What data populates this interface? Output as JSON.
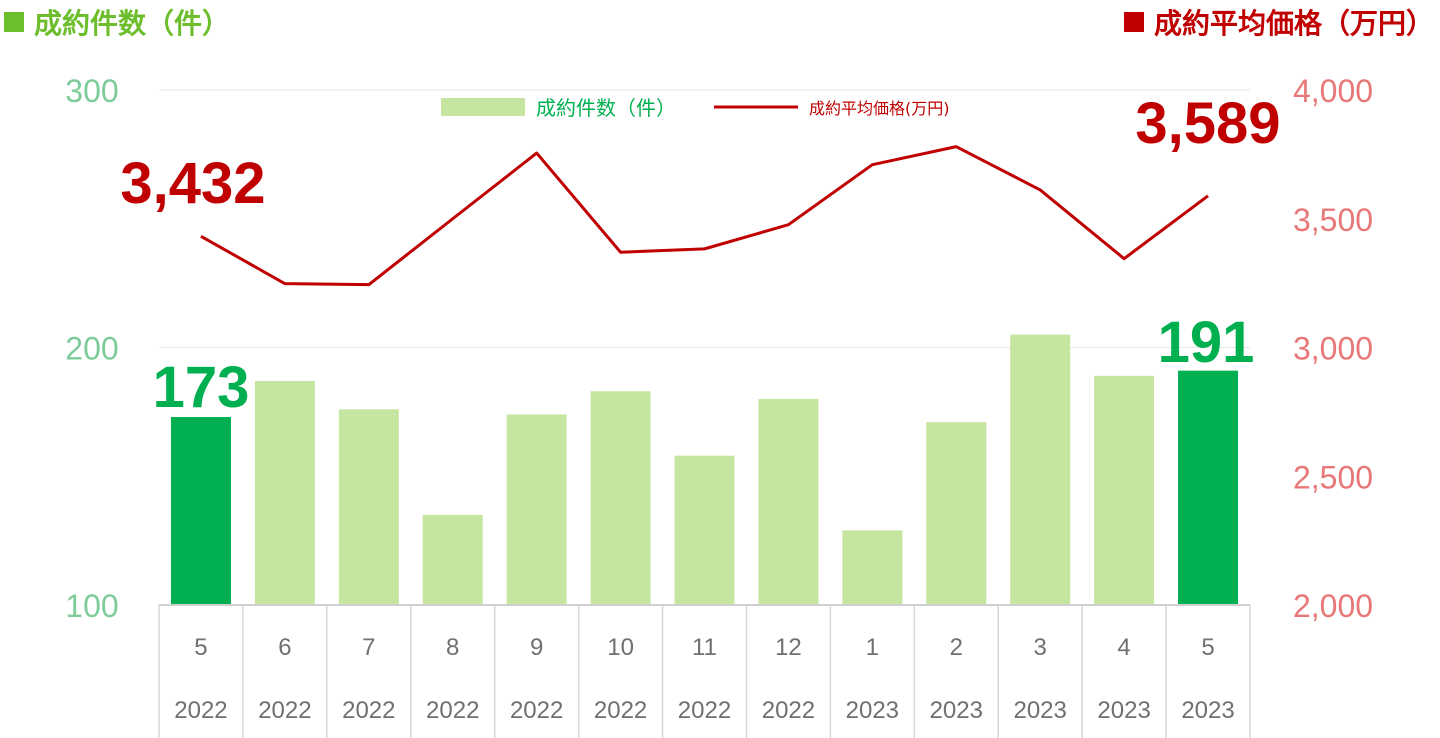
{
  "left_title": "成約件数（件）",
  "right_title": "成約平均価格（万円）",
  "colors": {
    "bar": "#C5E5A0",
    "bar_highlight": "#00B050",
    "line": "#C00000",
    "left_axis_text": "#7DCC9A",
    "right_axis_text": "#E87878",
    "count_callout": "#00B050",
    "price_callout": "#C00000",
    "left_title": "#6DBE2C",
    "right_title": "#C00000"
  },
  "legend": {
    "count": "成約件数（件）",
    "price": "成約平均価格(万円)"
  },
  "callouts": {
    "first_price": "3,432",
    "last_price": "3,589",
    "first_count": "173",
    "last_count": "191"
  },
  "chart_data": {
    "type": "bar",
    "categories": [
      {
        "month": "5",
        "year": "2022"
      },
      {
        "month": "6",
        "year": "2022"
      },
      {
        "month": "7",
        "year": "2022"
      },
      {
        "month": "8",
        "year": "2022"
      },
      {
        "month": "9",
        "year": "2022"
      },
      {
        "month": "10",
        "year": "2022"
      },
      {
        "month": "11",
        "year": "2022"
      },
      {
        "month": "12",
        "year": "2022"
      },
      {
        "month": "1",
        "year": "2023"
      },
      {
        "month": "2",
        "year": "2023"
      },
      {
        "month": "3",
        "year": "2023"
      },
      {
        "month": "4",
        "year": "2023"
      },
      {
        "month": "5",
        "year": "2023"
      }
    ],
    "series": [
      {
        "name": "成約件数（件）",
        "type": "bar",
        "axis": "left",
        "values": [
          173,
          187,
          176,
          135,
          174,
          183,
          158,
          180,
          129,
          171,
          205,
          189,
          191
        ],
        "highlight": [
          0,
          12
        ]
      },
      {
        "name": "成約平均価格(万円)",
        "type": "line",
        "axis": "right",
        "values": [
          3432,
          3248,
          3244,
          3500,
          3755,
          3370,
          3383,
          3477,
          3710,
          3780,
          3612,
          3345,
          3589
        ]
      }
    ],
    "y_left": {
      "min": 100,
      "max": 300,
      "ticks": [
        "100",
        "200",
        "300"
      ]
    },
    "y_right": {
      "min": 2000,
      "max": 4000,
      "ticks": [
        "2,000",
        "2,500",
        "3,000",
        "3,500",
        "4,000"
      ]
    },
    "grid": "left-axis ticks only",
    "legend_position": "top-center"
  }
}
